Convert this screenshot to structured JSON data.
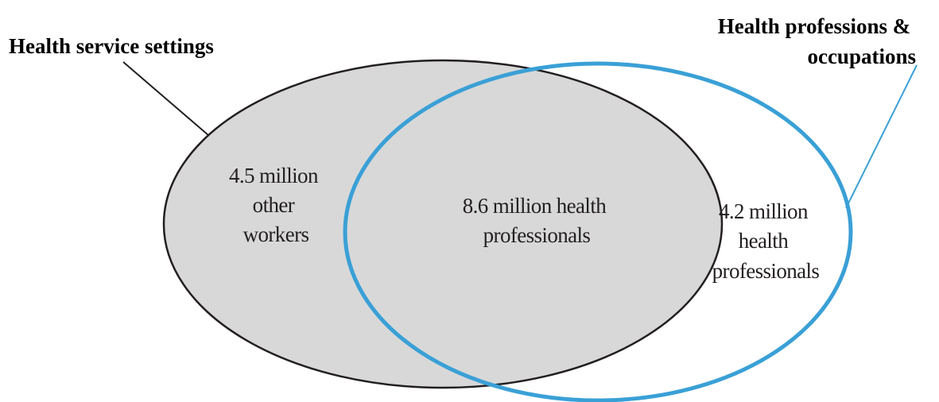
{
  "title_left": "Health service settings",
  "title_right": {
    "line1": "Health professions &",
    "line2": "occupations"
  },
  "regions": {
    "left_only": {
      "line1": "4.5 million",
      "line2": "other",
      "line3": "workers"
    },
    "overlap": {
      "line1": "8.6 million health",
      "line2": "professionals"
    },
    "right_only": {
      "line1": "4.2 million",
      "line2": "health",
      "line3": "professionals"
    }
  },
  "colors": {
    "left_fill": "#d8d8d8",
    "left_stroke": "#231f20",
    "right_stroke": "#3aa0d6",
    "text": "#231f20"
  }
}
